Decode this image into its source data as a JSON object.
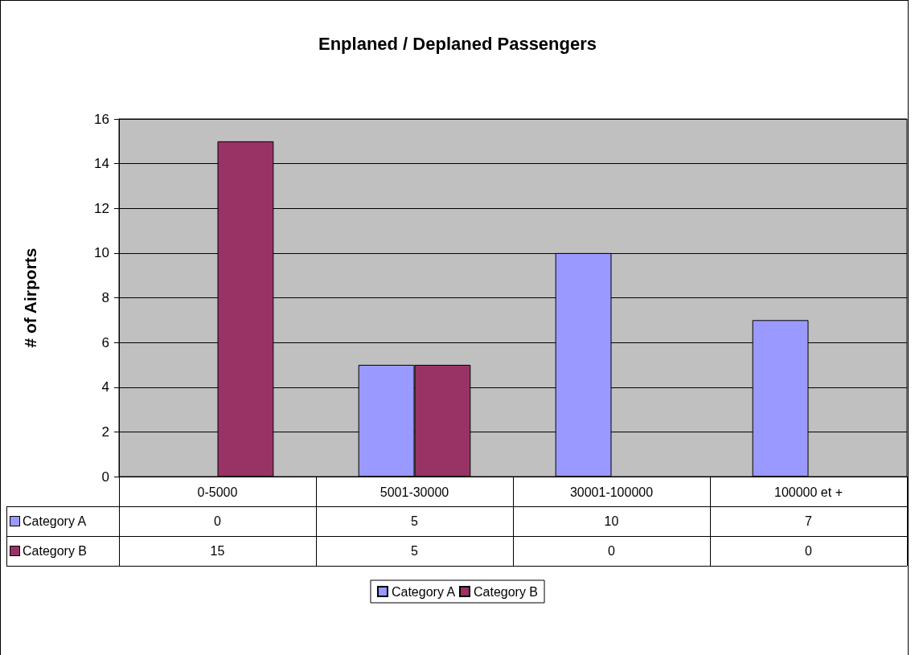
{
  "chart_data": {
    "type": "bar",
    "title": "Enplaned / Deplaned Passengers",
    "ylabel": "# of Airports",
    "categories": [
      "0-5000",
      "5001-30000",
      "30001-100000",
      "100000 et +"
    ],
    "series": [
      {
        "name": "Category A",
        "color": "#9999ff",
        "values": [
          0,
          5,
          10,
          7
        ]
      },
      {
        "name": "Category B",
        "color": "#993366",
        "values": [
          15,
          5,
          0,
          0
        ]
      }
    ],
    "ylim": [
      0,
      16
    ],
    "yticks": [
      0,
      2,
      4,
      6,
      8,
      10,
      12,
      14,
      16
    ],
    "grid": "y",
    "legend": "bottom",
    "data_labels": true
  }
}
